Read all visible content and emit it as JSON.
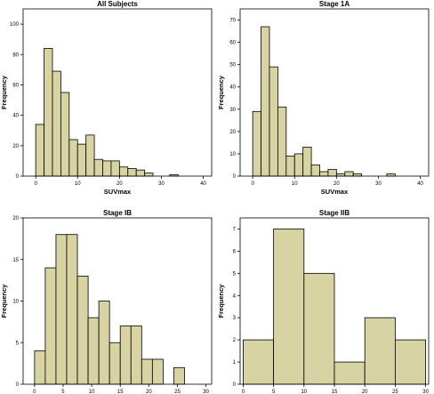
{
  "chart_data": [
    {
      "type": "bar",
      "title": "All Subjects",
      "xlabel": "SUVmax",
      "ylabel": "Frequency",
      "bin_edges": [
        0,
        2,
        4,
        6,
        8,
        10,
        12,
        14,
        16,
        18,
        20,
        22,
        24,
        26,
        28,
        30,
        32,
        34,
        36,
        38,
        40
      ],
      "values": [
        34,
        84,
        69,
        55,
        24,
        21,
        27,
        11,
        10,
        10,
        6,
        5,
        4,
        2,
        0,
        0,
        1,
        0,
        0,
        0
      ],
      "xlim": [
        -3,
        42
      ],
      "ylim": [
        0,
        110
      ],
      "xticks": [
        0,
        10,
        20,
        30,
        40
      ],
      "yticks": [
        0,
        20,
        40,
        60,
        80,
        100
      ],
      "grid": false
    },
    {
      "type": "bar",
      "title": "Stage 1A",
      "xlabel": "SUVmax",
      "ylabel": "Frequency",
      "bin_edges": [
        0,
        2,
        4,
        6,
        8,
        10,
        12,
        14,
        16,
        18,
        20,
        22,
        24,
        26,
        28,
        30,
        32,
        34,
        36,
        38,
        40
      ],
      "values": [
        29,
        67,
        49,
        31,
        9,
        10,
        13,
        5,
        2,
        3,
        1,
        2,
        1,
        0,
        0,
        0,
        1,
        0,
        0,
        0
      ],
      "xlim": [
        -3,
        42
      ],
      "ylim": [
        0,
        75
      ],
      "xticks": [
        0,
        10,
        20,
        30,
        40
      ],
      "yticks": [
        0,
        10,
        20,
        30,
        40,
        50,
        60,
        70
      ],
      "grid": false
    },
    {
      "type": "bar",
      "title": "Stage IB",
      "xlabel": "SUVmax",
      "ylabel": "Frequency",
      "bin_edges": [
        0,
        1.875,
        3.75,
        5.625,
        7.5,
        9.375,
        11.25,
        13.125,
        15,
        16.875,
        18.75,
        20.625,
        22.5,
        24.375,
        26.25,
        28.125
      ],
      "values": [
        4,
        14,
        18,
        18,
        13,
        8,
        10,
        5,
        7,
        7,
        3,
        3,
        0,
        2,
        0
      ],
      "xlim": [
        -2,
        31
      ],
      "ylim": [
        0,
        20
      ],
      "xticks": [
        0,
        5,
        10,
        15,
        20,
        25,
        30
      ],
      "yticks": [
        0,
        5,
        10,
        15,
        20
      ],
      "grid": false
    },
    {
      "type": "bar",
      "title": "Stage IIB",
      "xlabel": "SUVmax",
      "ylabel": "Frequency",
      "bin_edges": [
        0,
        5,
        10,
        15,
        20,
        25,
        30
      ],
      "values": [
        2,
        7,
        5,
        1,
        3,
        2
      ],
      "xlim": [
        -0.5,
        30.5
      ],
      "ylim": [
        0,
        7.5
      ],
      "xticks": [
        0,
        5,
        10,
        15,
        20,
        25,
        30
      ],
      "yticks": [
        0,
        1,
        2,
        3,
        4,
        5,
        6,
        7
      ],
      "grid": false
    }
  ]
}
